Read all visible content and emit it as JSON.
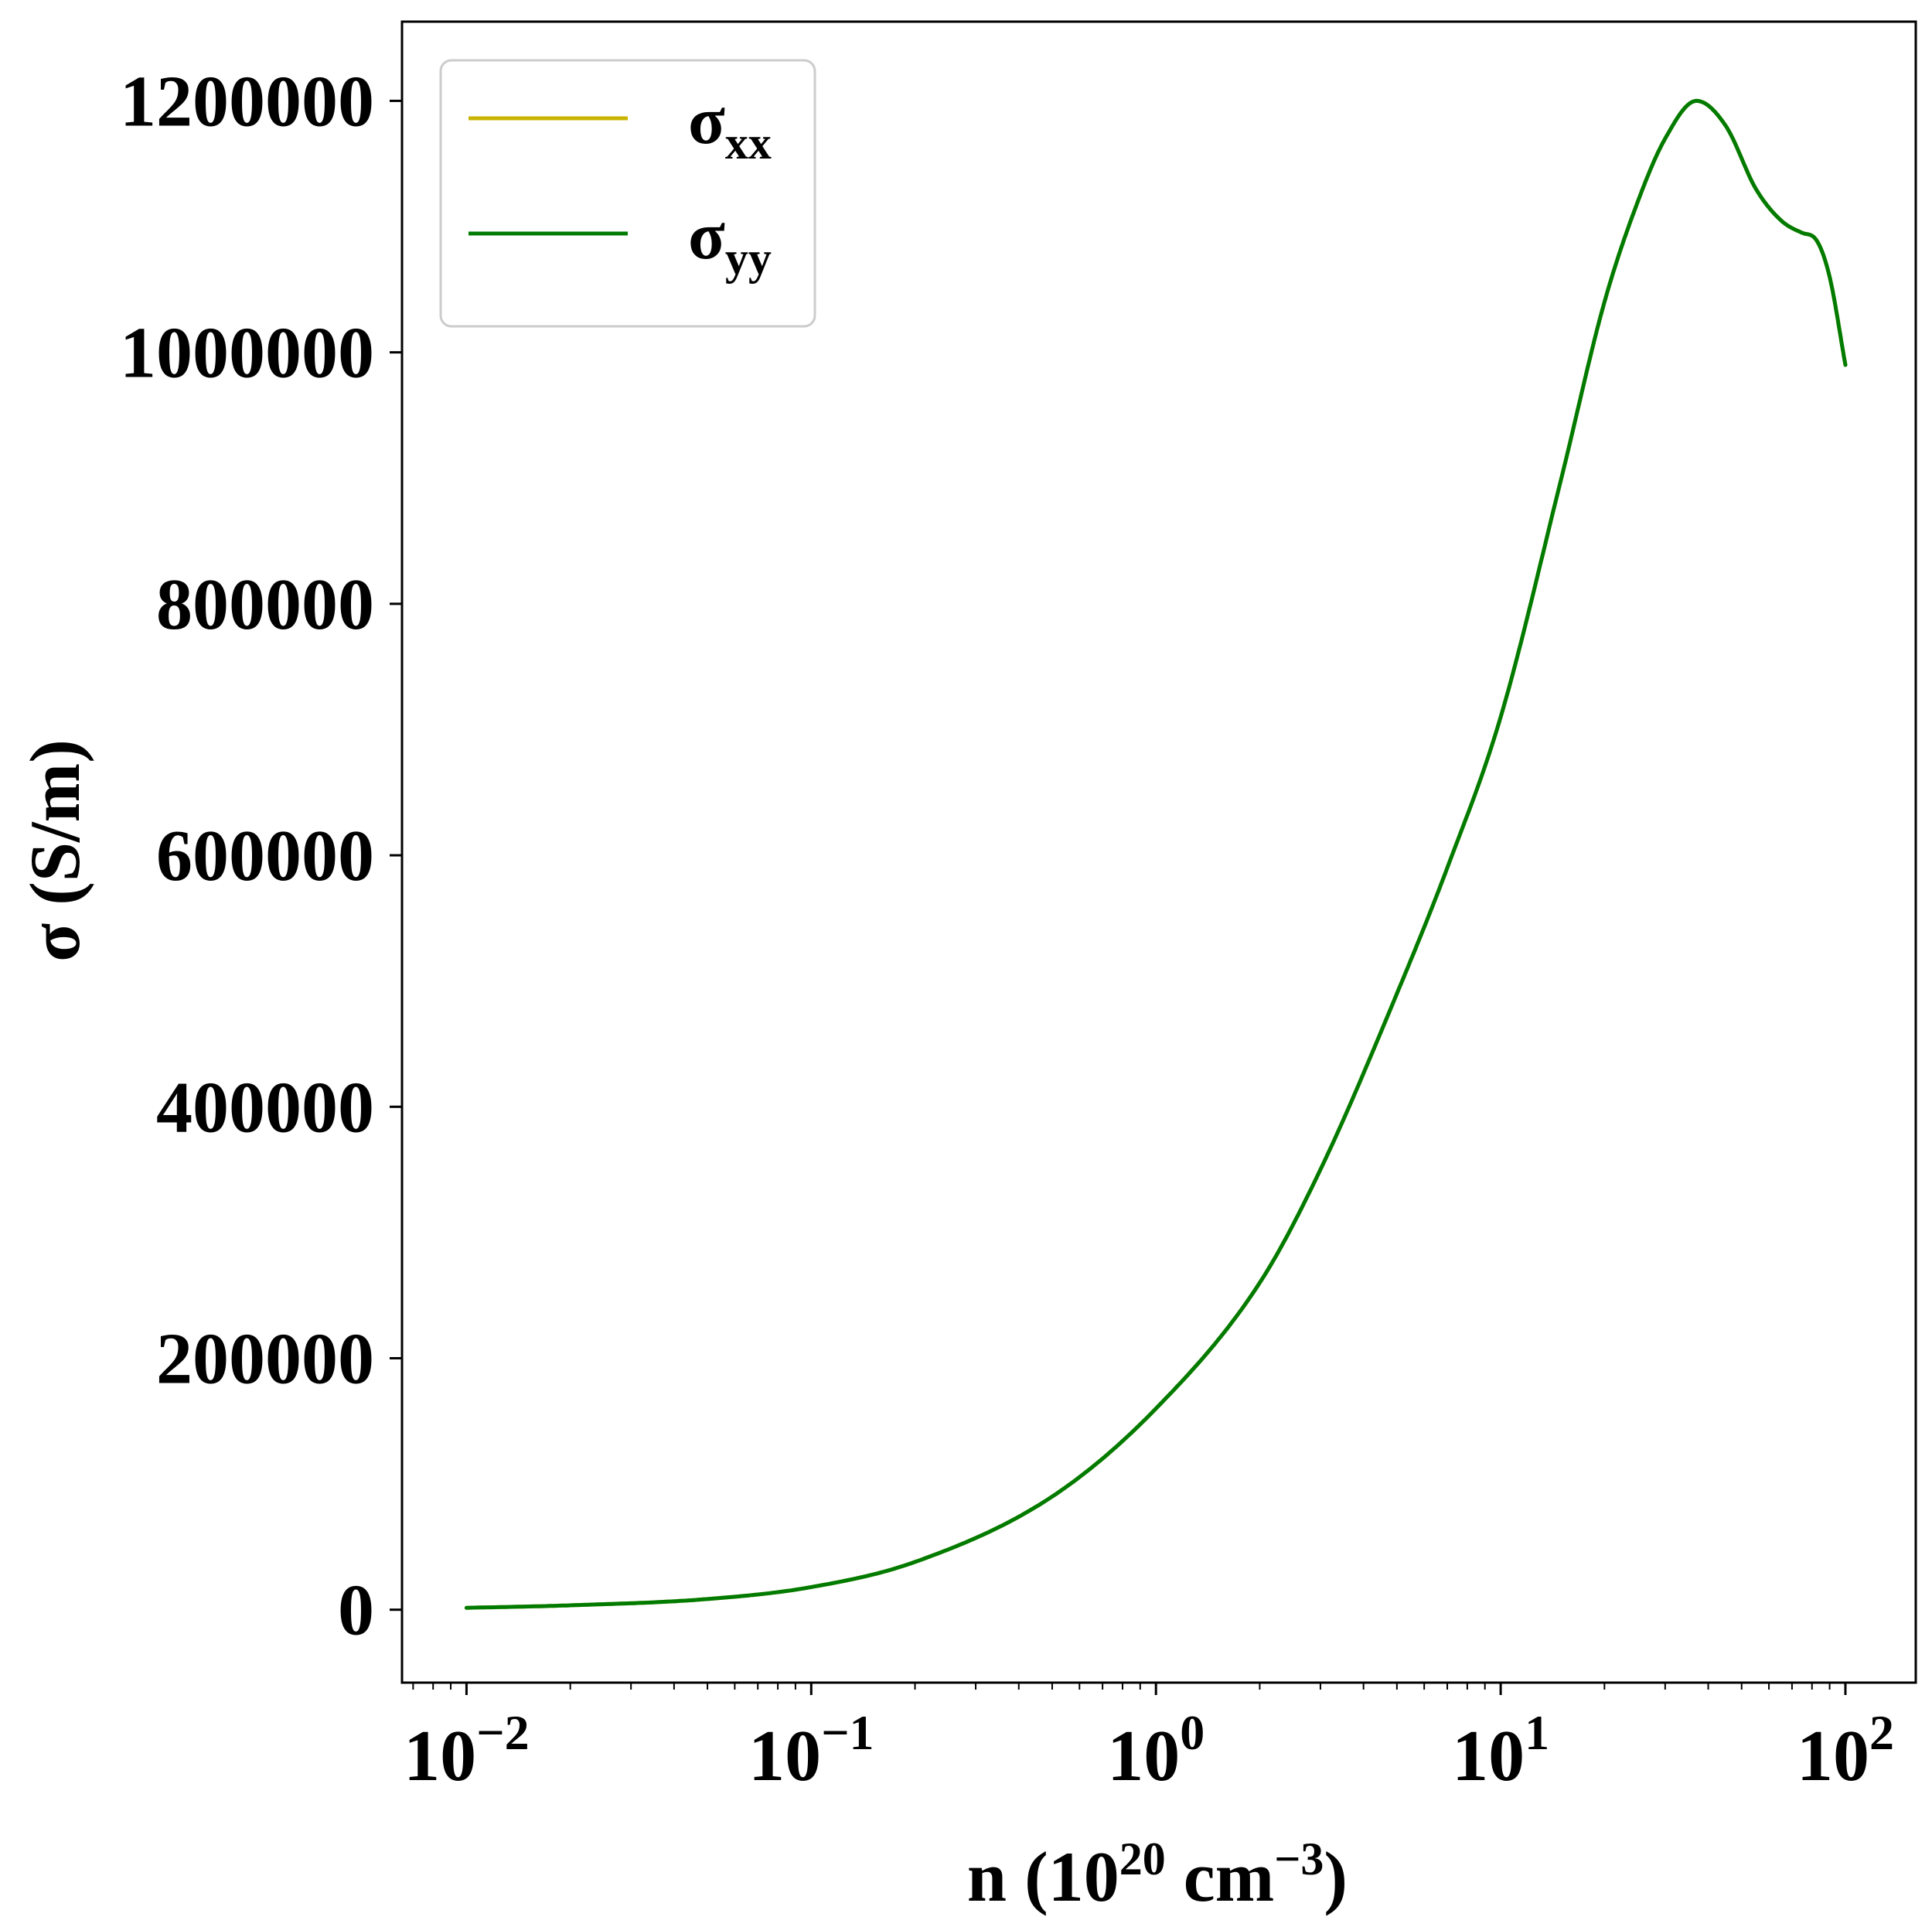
{
  "chart_data": {
    "type": "line",
    "title": "",
    "xlabel": {
      "base": "n (10",
      "exp1": "20",
      "mid": " cm",
      "exp2": "−3",
      "end": ")"
    },
    "ylabel": "σ (S/m)",
    "xscale": "log",
    "xlim": [
      0.0065,
      160
    ],
    "ylim": [
      -58000,
      1263000
    ],
    "x_ticks": [
      {
        "value": 0.01,
        "base": "10",
        "exp": "−2"
      },
      {
        "value": 0.1,
        "base": "10",
        "exp": "−1"
      },
      {
        "value": 1,
        "base": "10",
        "exp": "0"
      },
      {
        "value": 10,
        "base": "10",
        "exp": "1"
      },
      {
        "value": 100,
        "base": "10",
        "exp": "2"
      }
    ],
    "y_ticks": [
      {
        "value": 0,
        "label": "0"
      },
      {
        "value": 200000,
        "label": "200000"
      },
      {
        "value": 400000,
        "label": "400000"
      },
      {
        "value": 600000,
        "label": "600000"
      },
      {
        "value": 800000,
        "label": "800000"
      },
      {
        "value": 1000000,
        "label": "1000000"
      },
      {
        "value": 1200000,
        "label": "1200000"
      }
    ],
    "grid": false,
    "legend_position": "top-left",
    "series": [
      {
        "name": "σ",
        "subscript": "xx",
        "color": "#c8b400",
        "x": [
          0.01,
          0.02,
          0.05,
          0.1,
          0.2,
          0.5,
          1,
          2,
          3,
          5,
          7,
          10,
          15,
          20,
          25,
          30,
          37,
          45,
          55,
          65,
          75,
          82,
          90,
          100
        ],
        "y": [
          1500,
          3500,
          8500,
          18000,
          38000,
          90000,
          160000,
          260000,
          350000,
          490000,
          590000,
          710000,
          900000,
          1040000,
          1120000,
          1170000,
          1200000,
          1180000,
          1130000,
          1105000,
          1095000,
          1090000,
          1060000,
          990000
        ]
      },
      {
        "name": "σ",
        "subscript": "yy",
        "color": "#007b00",
        "x": [
          0.01,
          0.02,
          0.05,
          0.1,
          0.2,
          0.5,
          1,
          2,
          3,
          5,
          7,
          10,
          15,
          20,
          25,
          30,
          37,
          45,
          55,
          65,
          75,
          82,
          90,
          100
        ],
        "y": [
          1500,
          3500,
          8500,
          18000,
          38000,
          90000,
          160000,
          260000,
          350000,
          490000,
          590000,
          710000,
          900000,
          1040000,
          1120000,
          1170000,
          1200000,
          1180000,
          1130000,
          1105000,
          1095000,
          1090000,
          1060000,
          990000
        ]
      }
    ]
  }
}
